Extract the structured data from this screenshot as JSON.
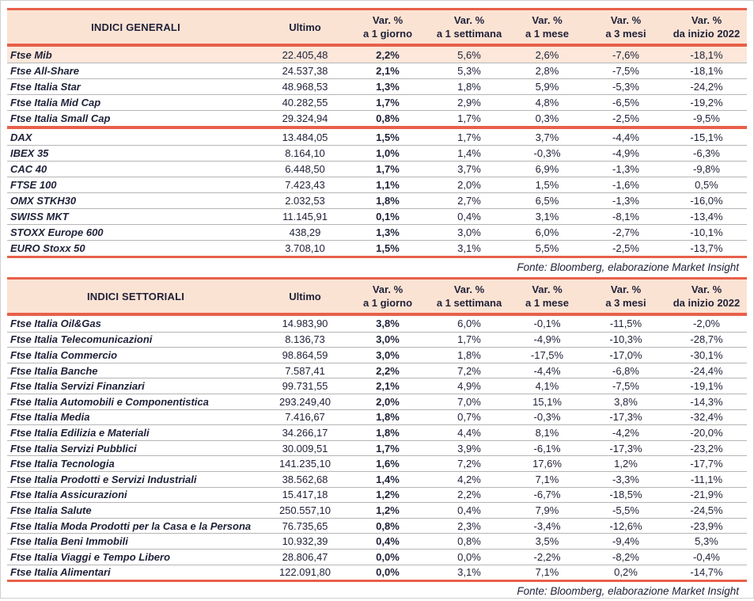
{
  "colors": {
    "accent_red": "#E8604A",
    "header_bg": "#FBE3D4",
    "highlight_row_bg": "#FCE7DA",
    "text": "#1F2138",
    "row_separator": "#B5B5B5"
  },
  "tables": [
    {
      "title": "INDICI GENERALI",
      "header": {
        "ultimo": "Ultimo",
        "var": "Var. %",
        "periods": [
          "a 1 giorno",
          "a 1 settimana",
          "a 1 mese",
          "a 3 mesi",
          "da inizio 2022"
        ]
      },
      "groups": [
        [
          {
            "name": "Ftse Mib",
            "ultimo": "22.405,48",
            "d1": "2,2%",
            "w1": "5,6%",
            "m1": "2,6%",
            "m3": "-7,6%",
            "ytd": "-18,1%",
            "highlight": true
          },
          {
            "name": "Ftse All-Share",
            "ultimo": "24.537,38",
            "d1": "2,1%",
            "w1": "5,3%",
            "m1": "2,8%",
            "m3": "-7,5%",
            "ytd": "-18,1%"
          },
          {
            "name": "Ftse Italia Star",
            "ultimo": "48.968,53",
            "d1": "1,3%",
            "w1": "1,8%",
            "m1": "5,9%",
            "m3": "-5,3%",
            "ytd": "-24,2%"
          },
          {
            "name": "Ftse Italia Mid Cap",
            "ultimo": "40.282,55",
            "d1": "1,7%",
            "w1": "2,9%",
            "m1": "4,8%",
            "m3": "-6,5%",
            "ytd": "-19,2%"
          },
          {
            "name": "Ftse Italia Small Cap",
            "ultimo": "29.324,94",
            "d1": "0,8%",
            "w1": "1,7%",
            "m1": "0,3%",
            "m3": "-2,5%",
            "ytd": "-9,5%"
          }
        ],
        [
          {
            "name": "DAX",
            "ultimo": "13.484,05",
            "d1": "1,5%",
            "w1": "1,7%",
            "m1": "3,7%",
            "m3": "-4,4%",
            "ytd": "-15,1%"
          },
          {
            "name": "IBEX 35",
            "ultimo": "8.164,10",
            "d1": "1,0%",
            "w1": "1,4%",
            "m1": "-0,3%",
            "m3": "-4,9%",
            "ytd": "-6,3%"
          },
          {
            "name": "CAC 40",
            "ultimo": "6.448,50",
            "d1": "1,7%",
            "w1": "3,7%",
            "m1": "6,9%",
            "m3": "-1,3%",
            "ytd": "-9,8%"
          },
          {
            "name": "FTSE 100",
            "ultimo": "7.423,43",
            "d1": "1,1%",
            "w1": "2,0%",
            "m1": "1,5%",
            "m3": "-1,6%",
            "ytd": "0,5%"
          },
          {
            "name": "OMX STKH30",
            "ultimo": "2.032,53",
            "d1": "1,8%",
            "w1": "2,7%",
            "m1": "6,5%",
            "m3": "-1,3%",
            "ytd": "-16,0%"
          },
          {
            "name": "SWISS MKT",
            "ultimo": "11.145,91",
            "d1": "0,1%",
            "w1": "0,4%",
            "m1": "3,1%",
            "m3": "-8,1%",
            "ytd": "-13,4%"
          },
          {
            "name": "STOXX Europe 600",
            "ultimo": "438,29",
            "d1": "1,3%",
            "w1": "3,0%",
            "m1": "6,0%",
            "m3": "-2,7%",
            "ytd": "-10,1%"
          },
          {
            "name": "EURO Stoxx 50",
            "ultimo": "3.708,10",
            "d1": "1,5%",
            "w1": "3,1%",
            "m1": "5,5%",
            "m3": "-2,5%",
            "ytd": "-13,7%"
          }
        ]
      ],
      "fonte": "Fonte: Bloomberg, elaborazione Market Insight"
    },
    {
      "title": "INDICI SETTORIALI",
      "header": {
        "ultimo": "Ultimo",
        "var": "Var. %",
        "periods": [
          "a 1 giorno",
          "a 1 settimana",
          "a 1 mese",
          "a 3 mesi",
          "da inizio 2022"
        ]
      },
      "groups": [
        [
          {
            "name": "Ftse Italia Oil&Gas",
            "ultimo": "14.983,90",
            "d1": "3,8%",
            "w1": "6,0%",
            "m1": "-0,1%",
            "m3": "-11,5%",
            "ytd": "-2,0%"
          },
          {
            "name": "Ftse Italia Telecomunicazioni",
            "ultimo": "8.136,73",
            "d1": "3,0%",
            "w1": "1,7%",
            "m1": "-4,9%",
            "m3": "-10,3%",
            "ytd": "-28,7%"
          },
          {
            "name": "Ftse Italia Commercio",
            "ultimo": "98.864,59",
            "d1": "3,0%",
            "w1": "1,8%",
            "m1": "-17,5%",
            "m3": "-17,0%",
            "ytd": "-30,1%"
          },
          {
            "name": "Ftse Italia Banche",
            "ultimo": "7.587,41",
            "d1": "2,2%",
            "w1": "7,2%",
            "m1": "-4,4%",
            "m3": "-6,8%",
            "ytd": "-24,4%"
          },
          {
            "name": "Ftse Italia Servizi Finanziari",
            "ultimo": "99.731,55",
            "d1": "2,1%",
            "w1": "4,9%",
            "m1": "4,1%",
            "m3": "-7,5%",
            "ytd": "-19,1%"
          },
          {
            "name": "Ftse Italia Automobili e Componentistica",
            "ultimo": "293.249,40",
            "d1": "2,0%",
            "w1": "7,0%",
            "m1": "15,1%",
            "m3": "3,8%",
            "ytd": "-14,3%"
          },
          {
            "name": "Ftse Italia Media",
            "ultimo": "7.416,67",
            "d1": "1,8%",
            "w1": "0,7%",
            "m1": "-0,3%",
            "m3": "-17,3%",
            "ytd": "-32,4%"
          },
          {
            "name": "Ftse Italia Edilizia e Materiali",
            "ultimo": "34.266,17",
            "d1": "1,8%",
            "w1": "4,4%",
            "m1": "8,1%",
            "m3": "-4,2%",
            "ytd": "-20,0%"
          },
          {
            "name": "Ftse Italia Servizi Pubblici",
            "ultimo": "30.009,51",
            "d1": "1,7%",
            "w1": "3,9%",
            "m1": "-6,1%",
            "m3": "-17,3%",
            "ytd": "-23,2%"
          },
          {
            "name": "Ftse Italia Tecnologia",
            "ultimo": "141.235,10",
            "d1": "1,6%",
            "w1": "7,2%",
            "m1": "17,6%",
            "m3": "1,2%",
            "ytd": "-17,7%"
          },
          {
            "name": "Ftse Italia Prodotti e Servizi Industriali",
            "ultimo": "38.562,68",
            "d1": "1,4%",
            "w1": "4,2%",
            "m1": "7,1%",
            "m3": "-3,3%",
            "ytd": "-11,1%"
          },
          {
            "name": "Ftse Italia Assicurazioni",
            "ultimo": "15.417,18",
            "d1": "1,2%",
            "w1": "2,2%",
            "m1": "-6,7%",
            "m3": "-18,5%",
            "ytd": "-21,9%"
          },
          {
            "name": "Ftse Italia Salute",
            "ultimo": "250.557,10",
            "d1": "1,2%",
            "w1": "0,4%",
            "m1": "7,9%",
            "m3": "-5,5%",
            "ytd": "-24,5%"
          },
          {
            "name": "Ftse Italia Moda Prodotti per la Casa e la Persona",
            "ultimo": "76.735,65",
            "d1": "0,8%",
            "w1": "2,3%",
            "m1": "-3,4%",
            "m3": "-12,6%",
            "ytd": "-23,9%"
          },
          {
            "name": "Ftse Italia Beni Immobili",
            "ultimo": "10.932,39",
            "d1": "0,4%",
            "w1": "0,8%",
            "m1": "3,5%",
            "m3": "-9,4%",
            "ytd": "5,3%"
          },
          {
            "name": "Ftse Italia Viaggi e Tempo Libero",
            "ultimo": "28.806,47",
            "d1": "0,0%",
            "w1": "0,0%",
            "m1": "-2,2%",
            "m3": "-8,2%",
            "ytd": "-0,4%"
          },
          {
            "name": "Ftse Italia Alimentari",
            "ultimo": "122.091,80",
            "d1": "0,0%",
            "w1": "3,1%",
            "m1": "7,1%",
            "m3": "0,2%",
            "ytd": "-14,7%"
          }
        ]
      ],
      "fonte": "Fonte: Bloomberg, elaborazione Market Insight"
    }
  ]
}
